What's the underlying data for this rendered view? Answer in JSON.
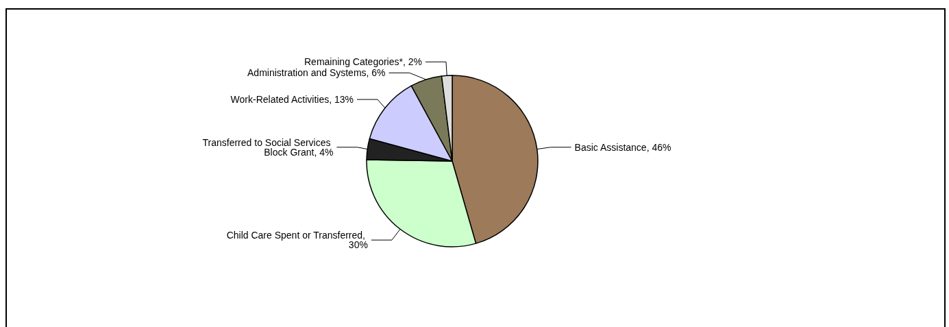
{
  "chart_data": {
    "type": "pie",
    "categories": [
      "Basic Assistance, 46%",
      "Child Care Spent or Transferred, 30%",
      "Transferred to Social Services Block Grant, 4%",
      "Work-Related Activities, 13%",
      "Administration and Systems, 6%",
      "Remaining Categories*, 2%"
    ],
    "values": [
      46,
      30,
      4,
      13,
      6,
      2
    ],
    "colors": [
      "#9c7a5a",
      "#ccffcc",
      "#222222",
      "#ccccff",
      "#7a7a5a",
      "#dddddd"
    ],
    "legend": false
  }
}
